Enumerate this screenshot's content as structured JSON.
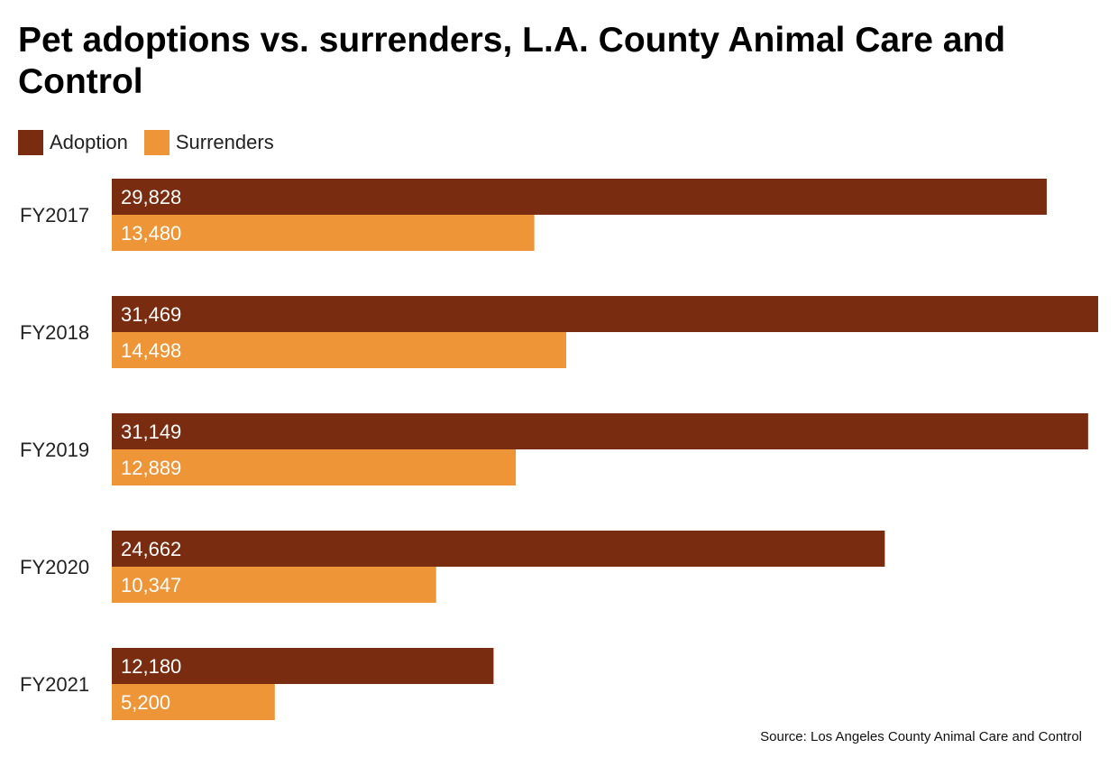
{
  "chart_data": {
    "type": "bar",
    "orientation": "horizontal",
    "title": "Pet adoptions vs. surrenders, L.A. County Animal Care and Control",
    "categories": [
      "FY2017",
      "FY2018",
      "FY2019",
      "FY2020",
      "FY2021"
    ],
    "series": [
      {
        "name": "Adoption",
        "color": "#7a2c10",
        "values": [
          29828,
          31469,
          31149,
          24662,
          12180
        ],
        "labels": [
          "29,828",
          "31,469",
          "31,149",
          "24,662",
          "12,180"
        ]
      },
      {
        "name": "Surrenders",
        "color": "#ed9537",
        "values": [
          13480,
          14498,
          12889,
          10347,
          5200
        ],
        "labels": [
          "13,480",
          "14,498",
          "12,889",
          "10,347",
          "5,200"
        ]
      }
    ],
    "legend_position": "top-left",
    "grid": false,
    "source": "Source: Los Angeles County Animal Care and Control"
  }
}
